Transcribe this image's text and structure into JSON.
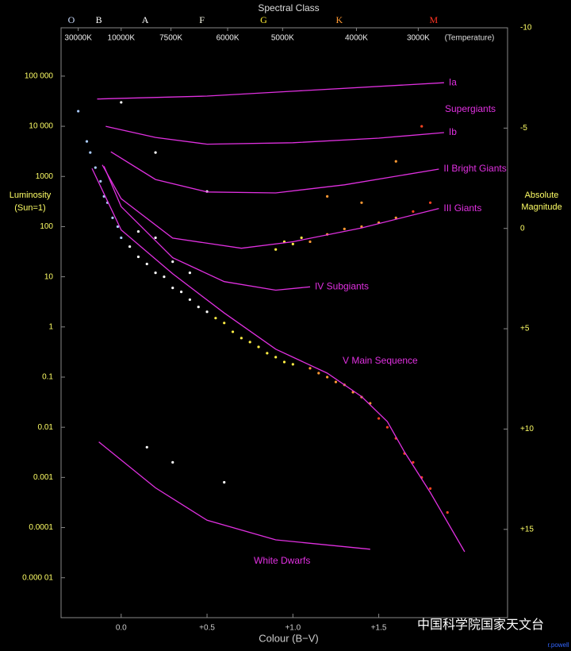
{
  "chart_data": {
    "type": "scatter",
    "title": "Spectral Class",
    "xlabel": "Colour (B−V)",
    "ylabel": [
      "Luminosity",
      "(Sun=1)"
    ],
    "y2label": [
      "Absolute",
      "Magnitude"
    ],
    "annotation": "Supergiants",
    "watermark": "中国科学院国家天文台",
    "credit": "r.powell",
    "log_y": true,
    "xlim": [
      -0.35,
      2.25
    ],
    "ylim": [
      1.6e-06,
      920000
    ],
    "y2lim": [
      19.4,
      -10
    ],
    "xticks": [
      {
        "value": 0,
        "label": "0.0"
      },
      {
        "value": 0.5,
        "label": "+0.5"
      },
      {
        "value": 1,
        "label": "+1.0"
      },
      {
        "value": 1.5,
        "label": "+1.5"
      }
    ],
    "yticks": [
      {
        "value": 100000,
        "label": "100 000"
      },
      {
        "value": 10000,
        "label": "10 000"
      },
      1000,
      100,
      10,
      1,
      0.1,
      0.01,
      0.001,
      0.0001,
      {
        "value": 1e-05,
        "label": "0.000 01"
      }
    ],
    "y2ticks": [
      -10,
      -5,
      0,
      {
        "value": 5,
        "label": "+5"
      },
      {
        "value": 10,
        "label": "+10"
      },
      {
        "value": 15,
        "label": "+15"
      }
    ],
    "temperature_label": "(Temperature)",
    "temperature_ticks": [
      {
        "value": -0.25,
        "label": "30000K"
      },
      {
        "value": 0,
        "label": "10000K"
      },
      {
        "value": 0.29,
        "label": "7500K"
      },
      {
        "value": 0.62,
        "label": "6000K"
      },
      {
        "value": 0.94,
        "label": "5000K"
      },
      {
        "value": 1.37,
        "label": "4000K"
      },
      {
        "value": 1.73,
        "label": "3000K"
      }
    ],
    "spectral_classes": [
      {
        "value": -0.29,
        "label": "O",
        "color": "#ccddff"
      },
      {
        "value": -0.13,
        "label": "B",
        "color": "#ffffff"
      },
      {
        "value": 0.14,
        "label": "A",
        "color": "#ffffff"
      },
      {
        "value": 0.47,
        "label": "F",
        "color": "#ffffee"
      },
      {
        "value": 0.83,
        "label": "G",
        "color": "#ffee33"
      },
      {
        "value": 1.27,
        "label": "K",
        "color": "#ff9933"
      },
      {
        "value": 1.82,
        "label": "M",
        "color": "#ff3322"
      }
    ],
    "series": [
      {
        "style": "points",
        "color": "#aaccff",
        "x": [
          -0.25,
          -0.2,
          -0.18,
          -0.15,
          -0.12,
          -0.1,
          -0.08,
          -0.05,
          -0.02,
          0.0
        ],
        "values": [
          20000,
          5000,
          3000,
          1500,
          800,
          400,
          300,
          150,
          100,
          60
        ]
      },
      {
        "style": "points",
        "color": "#ffffff",
        "x": [
          0.05,
          0.1,
          0.15,
          0.2,
          0.25,
          0.3,
          0.35,
          0.4,
          0.45,
          0.5,
          0.1,
          0.2,
          0.3,
          0.4,
          0.0,
          0.2,
          0.5,
          0.3,
          0.6,
          0.15
        ],
        "values": [
          40,
          25,
          18,
          12,
          10,
          6,
          5,
          3.5,
          2.5,
          2,
          80,
          60,
          20,
          12,
          30000,
          3000,
          500,
          0.002,
          0.0008,
          0.004
        ]
      },
      {
        "style": "points",
        "color": "#ffee44",
        "x": [
          0.55,
          0.6,
          0.65,
          0.7,
          0.75,
          0.8,
          0.85,
          0.9,
          0.95,
          1.0,
          0.95,
          1.0,
          1.05,
          0.9
        ],
        "values": [
          1.5,
          1.2,
          0.8,
          0.6,
          0.5,
          0.4,
          0.3,
          0.25,
          0.2,
          0.18,
          50,
          45,
          60,
          35
        ]
      },
      {
        "style": "points",
        "color": "#ff9933",
        "x": [
          1.1,
          1.15,
          1.2,
          1.25,
          1.3,
          1.35,
          1.4,
          1.45,
          1.1,
          1.2,
          1.3,
          1.4,
          1.5,
          1.6,
          1.2,
          1.4,
          1.6
        ],
        "values": [
          0.15,
          0.12,
          0.1,
          0.08,
          0.07,
          0.05,
          0.04,
          0.03,
          50,
          70,
          90,
          100,
          120,
          150,
          400,
          300,
          2000
        ]
      },
      {
        "style": "points",
        "color": "#ff4422",
        "x": [
          1.5,
          1.55,
          1.6,
          1.65,
          1.7,
          1.75,
          1.8,
          1.9,
          1.7,
          1.8,
          1.75
        ],
        "values": [
          0.015,
          0.01,
          0.006,
          0.003,
          0.002,
          0.001,
          0.0006,
          0.0002,
          200,
          300,
          10000
        ]
      },
      {
        "style": "line",
        "name": "Ia",
        "color": "#e030e0",
        "x": [
          -0.14,
          0.5,
          1.0,
          1.88
        ],
        "values": [
          35000,
          40000,
          50000,
          74000
        ]
      },
      {
        "style": "line",
        "name": "Ib",
        "color": "#e030e0",
        "x": [
          -0.09,
          0.2,
          0.5,
          1.0,
          1.5,
          1.88
        ],
        "values": [
          10000,
          6000,
          4400,
          4700,
          5800,
          7500
        ]
      },
      {
        "style": "line",
        "name": "II Bright Giants",
        "color": "#e030e0",
        "x": [
          -0.06,
          0.2,
          0.5,
          0.9,
          1.3,
          1.85
        ],
        "values": [
          3100,
          870,
          490,
          470,
          680,
          1400
        ]
      },
      {
        "style": "line",
        "name": "III Giants",
        "color": "#e030e0",
        "x": [
          -0.11,
          0.0,
          0.3,
          0.7,
          1.0,
          1.4,
          1.85
        ],
        "values": [
          1700,
          360,
          59,
          37,
          50,
          94,
          230
        ]
      },
      {
        "style": "line",
        "name": "IV Subgiants",
        "color": "#e030e0",
        "x": [
          -0.1,
          0.0,
          0.3,
          0.6,
          0.9,
          1.1
        ],
        "values": [
          1600,
          250,
          24,
          8,
          5.4,
          6.3
        ]
      },
      {
        "style": "line",
        "name": "V Main Sequence",
        "color": "#e030e0",
        "x": [
          -0.17,
          0.0,
          0.3,
          0.6,
          0.9,
          1.2,
          1.4,
          1.55,
          1.65,
          1.8,
          2.0
        ],
        "values": [
          1450,
          86,
          11.5,
          1.9,
          0.36,
          0.12,
          0.041,
          0.013,
          0.0032,
          0.0005,
          3.3e-05
        ]
      },
      {
        "style": "line",
        "name": "White Dwarfs",
        "color": "#e030e0",
        "x": [
          -0.13,
          0.2,
          0.5,
          0.9,
          1.45
        ],
        "values": [
          0.0051,
          0.00062,
          0.00014,
          5.7e-05,
          3.7e-05
        ]
      }
    ]
  }
}
